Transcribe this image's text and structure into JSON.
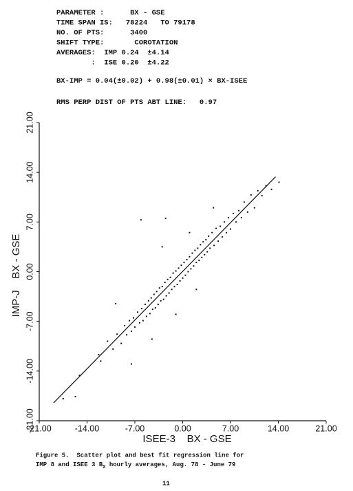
{
  "header": {
    "lines": [
      "PARAMETER :      BX - GSE",
      "TIME SPAN IS:   78224   TO 79178",
      "NO. OF PTS:      3400",
      "SHIFT TYPE:       COROTATION",
      "AVERAGES:  IMP 0.24  ±4.14",
      "        :  ISE 0.20  ±4.22"
    ],
    "equation": "BX-IMP = 0.04(±0.02) + 0.98(±0.01) × BX-ISEE",
    "rms": "RMS PERP DIST OF PTS ABT LINE:   0.97"
  },
  "chart_data": {
    "type": "scatter",
    "x_label": "ISEE-3    BX - GSE",
    "y_label": "IMP-J    BX - GSE",
    "xlim": [
      -21,
      21
    ],
    "ylim": [
      -21,
      21
    ],
    "xticks": [
      {
        "value": -21,
        "label": "-21.00"
      },
      {
        "value": -14,
        "label": "-14.00"
      },
      {
        "value": -7,
        "label": "-7.00"
      },
      {
        "value": 0,
        "label": "0.00"
      },
      {
        "value": 7,
        "label": "7.00"
      },
      {
        "value": 14,
        "label": "14.00"
      },
      {
        "value": 21,
        "label": "21.00"
      }
    ],
    "yticks": [
      {
        "value": -21,
        "label": "-21.00"
      },
      {
        "value": -14,
        "label": "-14.00"
      },
      {
        "value": -7,
        "label": "-7.00"
      },
      {
        "value": 0,
        "label": "0.00"
      },
      {
        "value": 7,
        "label": "7.00"
      },
      {
        "value": 14,
        "label": "14.00"
      },
      {
        "value": 21,
        "label": "21.00"
      }
    ],
    "color": "#111111",
    "x": [
      -17.5,
      -15.7,
      -15.1,
      -12.3,
      -12.0,
      -11.0,
      -10.2,
      -9.6,
      -9.0,
      -8.5,
      -8.2,
      -7.8,
      -7.5,
      -7.2,
      -7.0,
      -6.6,
      -6.3,
      -6.0,
      -5.8,
      -5.5,
      -5.3,
      -5.0,
      -4.8,
      -4.6,
      -4.4,
      -4.2,
      -4.0,
      -3.8,
      -3.6,
      -3.4,
      -3.2,
      -3.0,
      -2.8,
      -2.6,
      -2.4,
      -2.2,
      -2.0,
      -1.8,
      -1.6,
      -1.4,
      -1.2,
      -1.0,
      -0.8,
      -0.6,
      -0.4,
      -0.2,
      0.0,
      0.2,
      0.4,
      0.6,
      0.8,
      1.0,
      1.2,
      1.4,
      1.6,
      1.8,
      2.0,
      2.2,
      2.4,
      2.6,
      2.8,
      3.0,
      3.2,
      3.4,
      3.6,
      3.8,
      4.0,
      4.3,
      4.6,
      4.9,
      5.2,
      5.5,
      5.8,
      6.1,
      6.4,
      6.7,
      7.0,
      7.4,
      7.8,
      8.2,
      8.6,
      9.0,
      9.5,
      10.0,
      10.5,
      11.0,
      11.6,
      12.2,
      13.0,
      14.1,
      -6.1,
      -2.5,
      -9.8,
      -4.5,
      -3.0,
      -1.0,
      2.0,
      4.5,
      -7.5,
      1.0
    ],
    "y": [
      -17.9,
      -17.6,
      -14.6,
      -11.7,
      -12.6,
      -9.8,
      -10.9,
      -8.8,
      -10.1,
      -7.6,
      -8.9,
      -6.9,
      -8.4,
      -6.5,
      -7.8,
      -5.7,
      -7.2,
      -5.2,
      -6.9,
      -4.6,
      -6.3,
      -4.1,
      -5.9,
      -3.7,
      -5.3,
      -3.2,
      -5.1,
      -2.8,
      -4.6,
      -2.3,
      -4.1,
      -2.1,
      -3.9,
      -1.5,
      -3.4,
      -1.1,
      -3.0,
      -0.8,
      -2.5,
      -0.2,
      -2.1,
      0.1,
      -1.8,
      0.5,
      -1.3,
      0.9,
      -0.9,
      1.3,
      -0.5,
      1.7,
      0.0,
      2.1,
      0.4,
      2.6,
      0.8,
      3.0,
      1.3,
      3.3,
      1.6,
      3.8,
      2.0,
      4.2,
      2.4,
      4.5,
      2.8,
      5.0,
      3.3,
      5.5,
      3.7,
      6.1,
      4.3,
      6.4,
      4.9,
      7.0,
      5.5,
      7.6,
      6.0,
      8.2,
      7.0,
      8.6,
      7.6,
      9.8,
      8.4,
      10.8,
      9.0,
      11.4,
      10.7,
      12.1,
      11.6,
      12.6,
      7.3,
      7.5,
      -4.5,
      -9.5,
      3.5,
      -6.0,
      -2.5,
      9.0,
      -13.0,
      5.5
    ],
    "fit_line": {
      "x": [
        -18.9,
        13.6
      ],
      "y": [
        -18.48,
        13.37
      ]
    }
  },
  "caption": {
    "line1": "Figure 5.  Scatter plot and best fit regression line for",
    "line2_start": "IMP 8 and ISEE 3 B",
    "line2_sub": "X",
    "line2_end": " hourly averages, Aug. 78 - June 79"
  },
  "page_number": "11"
}
